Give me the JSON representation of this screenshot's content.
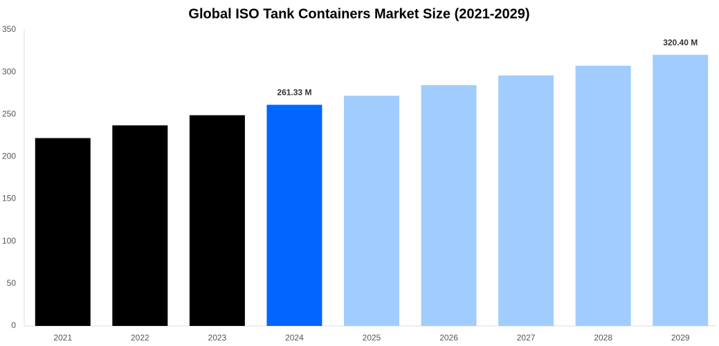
{
  "chart_data": {
    "type": "bar",
    "title": "Global ISO Tank Containers Market Size (2021-2029)",
    "categories": [
      "2021",
      "2022",
      "2023",
      "2024",
      "2025",
      "2026",
      "2027",
      "2028",
      "2029"
    ],
    "values": [
      222,
      237,
      249,
      261.33,
      272,
      284.5,
      296,
      307.5,
      320.4
    ],
    "value_labels": [
      null,
      null,
      null,
      "261.33 M",
      null,
      null,
      null,
      null,
      "320.40 M"
    ],
    "colors": [
      "#000000",
      "#000000",
      "#000000",
      "#0066ff",
      "#a0cdfd",
      "#a0cdfd",
      "#a0cdfd",
      "#a0cdfd",
      "#a0cdfd"
    ],
    "ylim": [
      0,
      350
    ],
    "yticks": [
      0,
      50,
      100,
      150,
      200,
      250,
      300,
      350
    ],
    "grid": false
  }
}
